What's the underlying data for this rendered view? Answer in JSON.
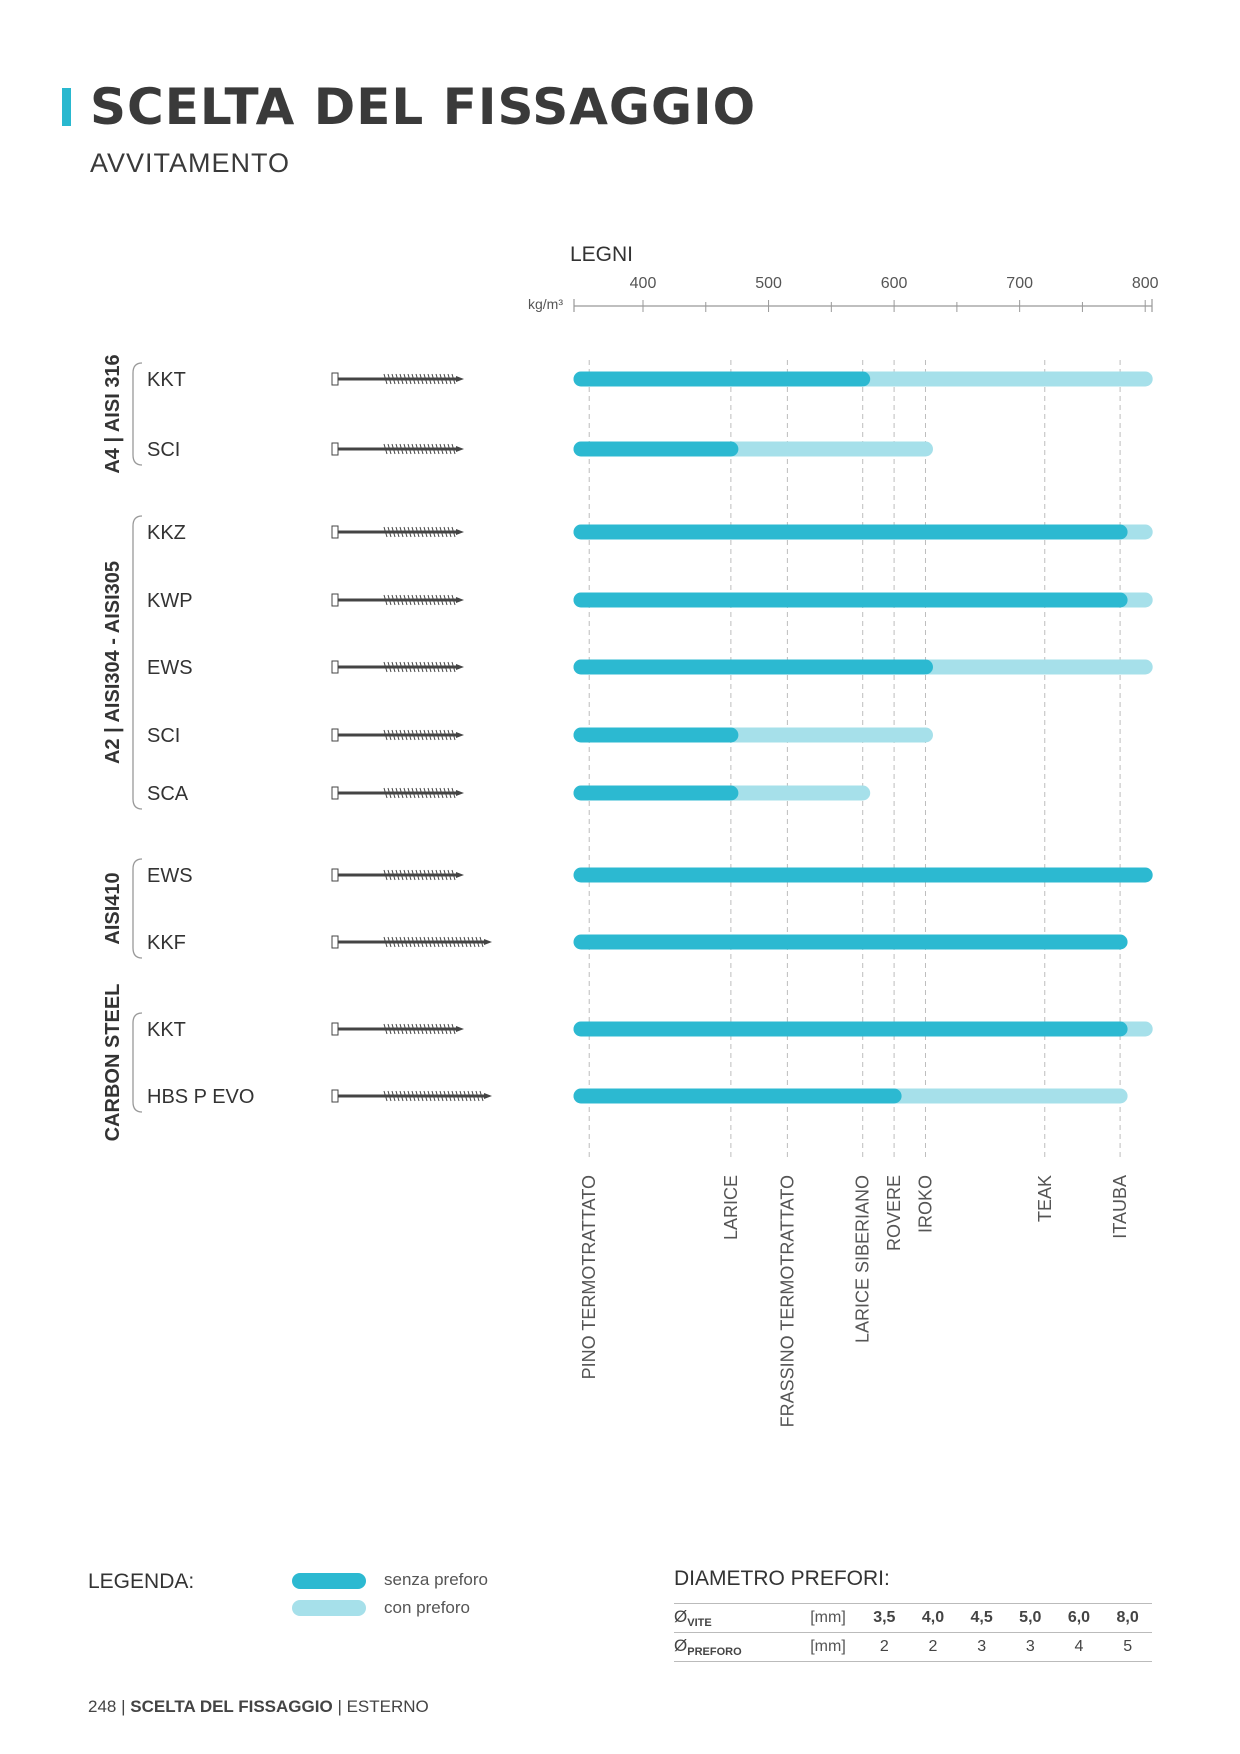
{
  "header": {
    "title": "SCELTA DEL FISSAGGIO",
    "subtitle": "AVVITAMENTO"
  },
  "chart_data": {
    "type": "bar",
    "title": "LEGNI",
    "unit_label": "kg/m³",
    "xlim": [
      340,
      800
    ],
    "x_ticks": [
      400,
      500,
      600,
      700,
      800
    ],
    "groups": [
      {
        "name": "A4 | AISI 316",
        "items": [
          {
            "label": "KKT",
            "senza_preforo": 575,
            "con_preforo": 800
          },
          {
            "label": "SCI",
            "senza_preforo": 470,
            "con_preforo": 625
          }
        ]
      },
      {
        "name": "A2 | AISI304 - AISI305",
        "items": [
          {
            "label": "KKZ",
            "senza_preforo": 780,
            "con_preforo": 800
          },
          {
            "label": "KWP",
            "senza_preforo": 780,
            "con_preforo": 800
          },
          {
            "label": "EWS",
            "senza_preforo": 625,
            "con_preforo": 800
          },
          {
            "label": "SCI",
            "senza_preforo": 470,
            "con_preforo": 625
          },
          {
            "label": "SCA",
            "senza_preforo": 470,
            "con_preforo": 575
          }
        ]
      },
      {
        "name": "AISI410",
        "items": [
          {
            "label": "EWS",
            "senza_preforo": 800,
            "con_preforo": 800
          },
          {
            "label": "KKF",
            "senza_preforo": 780,
            "con_preforo": 780
          }
        ]
      },
      {
        "name": "CARBON STEEL",
        "items": [
          {
            "label": "KKT",
            "senza_preforo": 780,
            "con_preforo": 800
          },
          {
            "label": "HBS P EVO",
            "senza_preforo": 600,
            "con_preforo": 780
          }
        ]
      }
    ],
    "woods": [
      {
        "name": "PINO TERMOTRATTATO",
        "density": 350
      },
      {
        "name": "LARICE",
        "density": 470
      },
      {
        "name": "FRASSINO TERMOTRATTATO",
        "density": 515
      },
      {
        "name": "LARICE SIBERIANO",
        "density": 575
      },
      {
        "name": "ROVERE",
        "density": 600
      },
      {
        "name": "IROKO",
        "density": 625
      },
      {
        "name": "TEAK",
        "density": 720
      },
      {
        "name": "ITAUBA",
        "density": 780
      }
    ],
    "colors": {
      "senza_preforo": "#2cb9d1",
      "con_preforo": "#a6e0ea"
    }
  },
  "legend": {
    "title": "LEGENDA:",
    "items": [
      {
        "label": "senza preforo",
        "color": "#2cb9d1"
      },
      {
        "label": "con preforo",
        "color": "#a6e0ea"
      }
    ]
  },
  "diameter_table": {
    "title": "DIAMETRO PREFORI:",
    "rows": [
      {
        "symbol": "Ø",
        "label": "VITE",
        "unit": "[mm]",
        "values": [
          "3,5",
          "4,0",
          "4,5",
          "5,0",
          "6,0",
          "8,0"
        ]
      },
      {
        "symbol": "Ø",
        "label": "PREFORO",
        "unit": "[mm]",
        "values": [
          "2",
          "2",
          "3",
          "3",
          "4",
          "5"
        ]
      }
    ]
  },
  "footer": {
    "page": "248",
    "section": "SCELTA DEL FISSAGGIO",
    "chapter": "ESTERNO"
  }
}
